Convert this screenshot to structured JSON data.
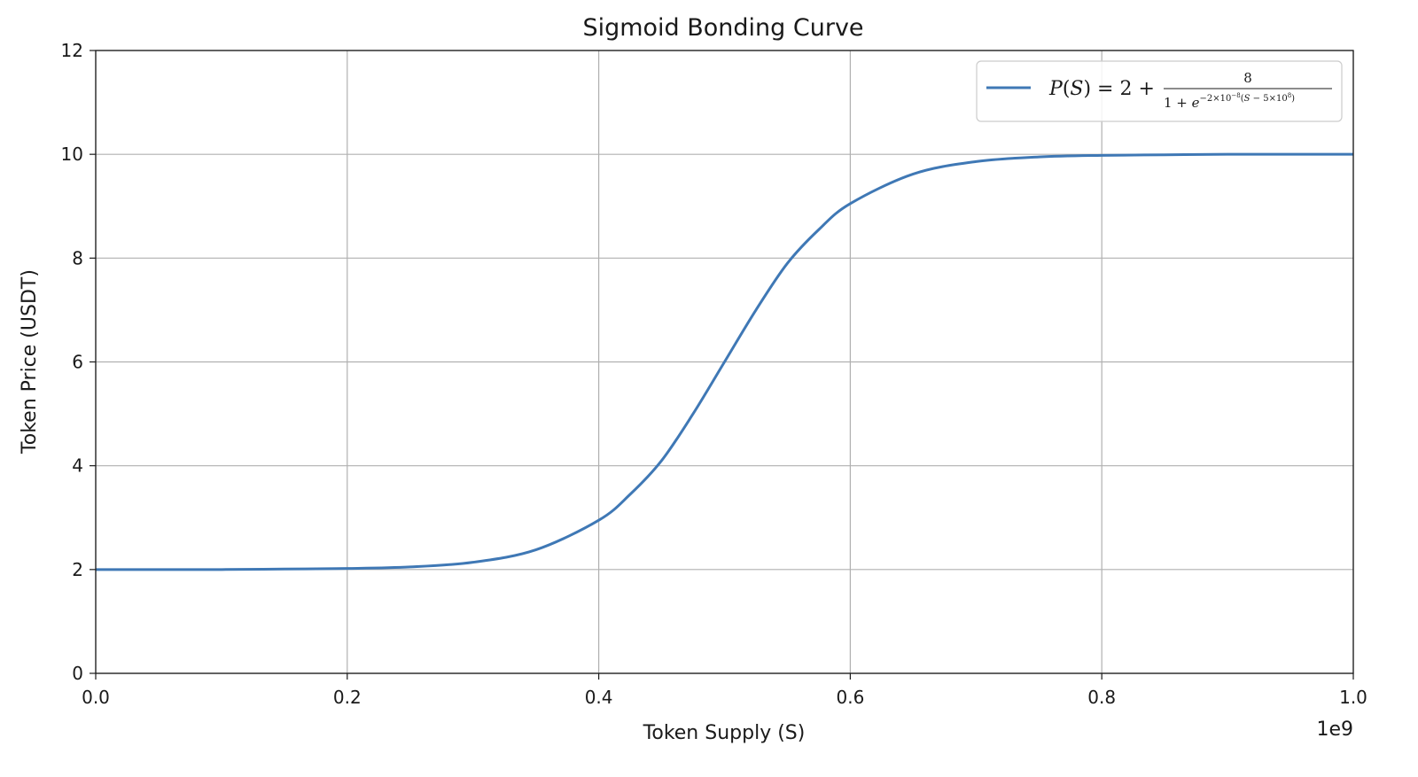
{
  "chart_data": {
    "type": "line",
    "title": "Sigmoid Bonding Curve",
    "xlabel": "Token Supply (S)",
    "ylabel": "Token Price (USDT)",
    "x_scale_label": "1e9",
    "xlim": [
      0,
      1.0
    ],
    "ylim": [
      0,
      12
    ],
    "x_ticks": [
      0.0,
      0.2,
      0.4,
      0.6,
      0.8,
      1.0
    ],
    "x_tick_labels": [
      "0.0",
      "0.2",
      "0.4",
      "0.6",
      "0.8",
      "1.0"
    ],
    "y_ticks": [
      0,
      2,
      4,
      6,
      8,
      10,
      12
    ],
    "y_tick_labels": [
      "0",
      "2",
      "4",
      "6",
      "8",
      "10",
      "12"
    ],
    "grid": true,
    "legend_position": "top-right",
    "series": [
      {
        "name": "P(S) = 2 + 8 / (1 + e^(−2×10^−8 (S − 5×10^8)))",
        "color": "#3f78b5",
        "x": [
          0.0,
          0.05,
          0.1,
          0.15,
          0.2,
          0.25,
          0.3,
          0.35,
          0.4,
          0.425,
          0.45,
          0.475,
          0.5,
          0.525,
          0.55,
          0.575,
          0.6,
          0.65,
          0.7,
          0.75,
          0.8,
          0.85,
          0.9,
          0.95,
          1.0
        ],
        "y": [
          2.0,
          2.0,
          2.0,
          2.01,
          2.02,
          2.05,
          2.14,
          2.38,
          2.95,
          3.45,
          4.1,
          5.0,
          6.0,
          7.0,
          7.9,
          8.55,
          9.05,
          9.62,
          9.86,
          9.95,
          9.98,
          9.99,
          10.0,
          10.0,
          10.0
        ]
      }
    ]
  }
}
